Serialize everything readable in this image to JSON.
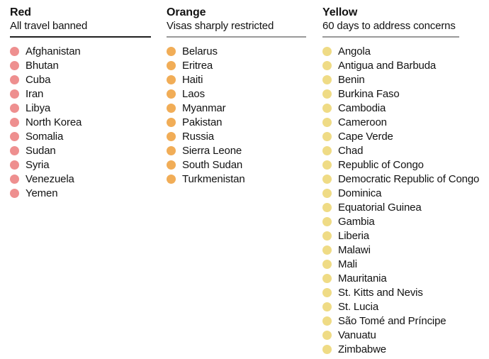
{
  "chart_data": {
    "type": "table",
    "legend_position": "none",
    "columns": [
      {
        "category": "Red",
        "description": "All travel banned",
        "dot_color": "#ee8f8f",
        "rule_color": "#1f1f1f",
        "countries": [
          "Afghanistan",
          "Bhutan",
          "Cuba",
          "Iran",
          "Libya",
          "North Korea",
          "Somalia",
          "Sudan",
          "Syria",
          "Venezuela",
          "Yemen"
        ]
      },
      {
        "category": "Orange",
        "description": "Visas sharply restricted",
        "dot_color": "#f1ad57",
        "rule_color": "#9a9a9a",
        "countries": [
          "Belarus",
          "Eritrea",
          "Haiti",
          "Laos",
          "Myanmar",
          "Pakistan",
          "Russia",
          "Sierra Leone",
          "South Sudan",
          "Turkmenistan"
        ]
      },
      {
        "category": "Yellow",
        "description": "60 days to address concerns",
        "dot_color": "#efdb85",
        "rule_color": "#9a9a9a",
        "countries": [
          "Angola",
          "Antigua and Barbuda",
          "Benin",
          "Burkina Faso",
          "Cambodia",
          "Cameroon",
          "Cape Verde",
          "Chad",
          "Republic of Congo",
          "Democratic Republic of Congo",
          "Dominica",
          "Equatorial Guinea",
          "Gambia",
          "Liberia",
          "Malawi",
          "Mali",
          "Mauritania",
          "St. Kitts and Nevis",
          "St. Lucia",
          "São Tomé and Príncipe",
          "Vanuatu",
          "Zimbabwe"
        ]
      }
    ]
  }
}
